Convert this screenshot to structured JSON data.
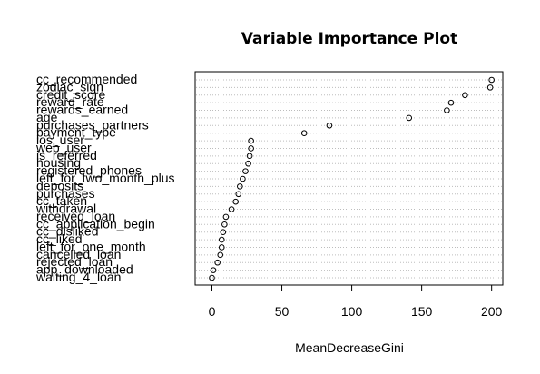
{
  "chart_data": {
    "type": "scatter",
    "title": "Variable Importance Plot",
    "xlabel": "MeanDecreaseGini",
    "ylabel": "",
    "xlim": [
      -12,
      208
    ],
    "xticks": [
      0,
      50,
      100,
      150,
      200
    ],
    "grid": "dotted horizontal line per variable",
    "categories": [
      "cc_recommended",
      "zodiac_sign",
      "credit_score",
      "reward_rate",
      "rewards_earned",
      "age",
      "purchases_partners",
      "payment_type",
      "ios_user",
      "web_user",
      "is_referred",
      "housing",
      "registered_phones",
      "left_for_two_month_plus",
      "deposits",
      "purchases",
      "cc_taken",
      "withdrawal",
      "received_loan",
      "cc_application_begin",
      "cc_disliked",
      "cc_liked",
      "left_for_one_month",
      "cancelled_loan",
      "rejected_loan",
      "app_downloaded",
      "waiting_4_loan"
    ],
    "values": [
      200,
      199,
      181,
      171,
      168,
      141,
      84,
      66,
      28,
      28,
      27,
      26,
      24,
      22,
      20,
      19,
      17,
      14,
      10,
      9,
      8,
      7,
      7,
      6,
      4,
      1,
      0
    ]
  }
}
